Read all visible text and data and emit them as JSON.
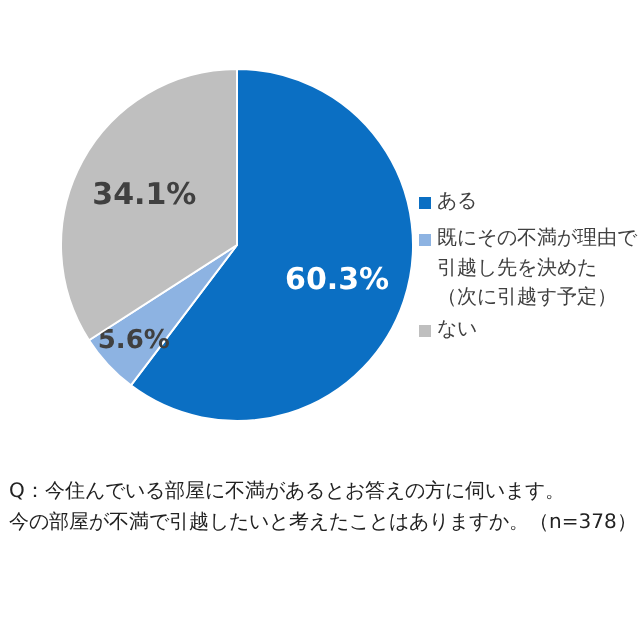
{
  "chart_data": {
    "type": "pie",
    "categories": [
      "ある",
      "既にその不満が理由で引越し先を決めた（次に引越す予定）",
      "ない"
    ],
    "values": [
      60.3,
      5.6,
      34.1
    ],
    "colors": [
      "#0b6fc3",
      "#8db3e2",
      "#bfbfbf"
    ],
    "value_labels": [
      "60.3%",
      "5.6%",
      "34.1%"
    ],
    "legend": "right",
    "annotations": [
      "Q：今住んでいる部屋に不満があるとお答えの方に伺います。今の部屋が不満で引越したいと考えたことはありますか。（n=378）"
    ]
  }
}
